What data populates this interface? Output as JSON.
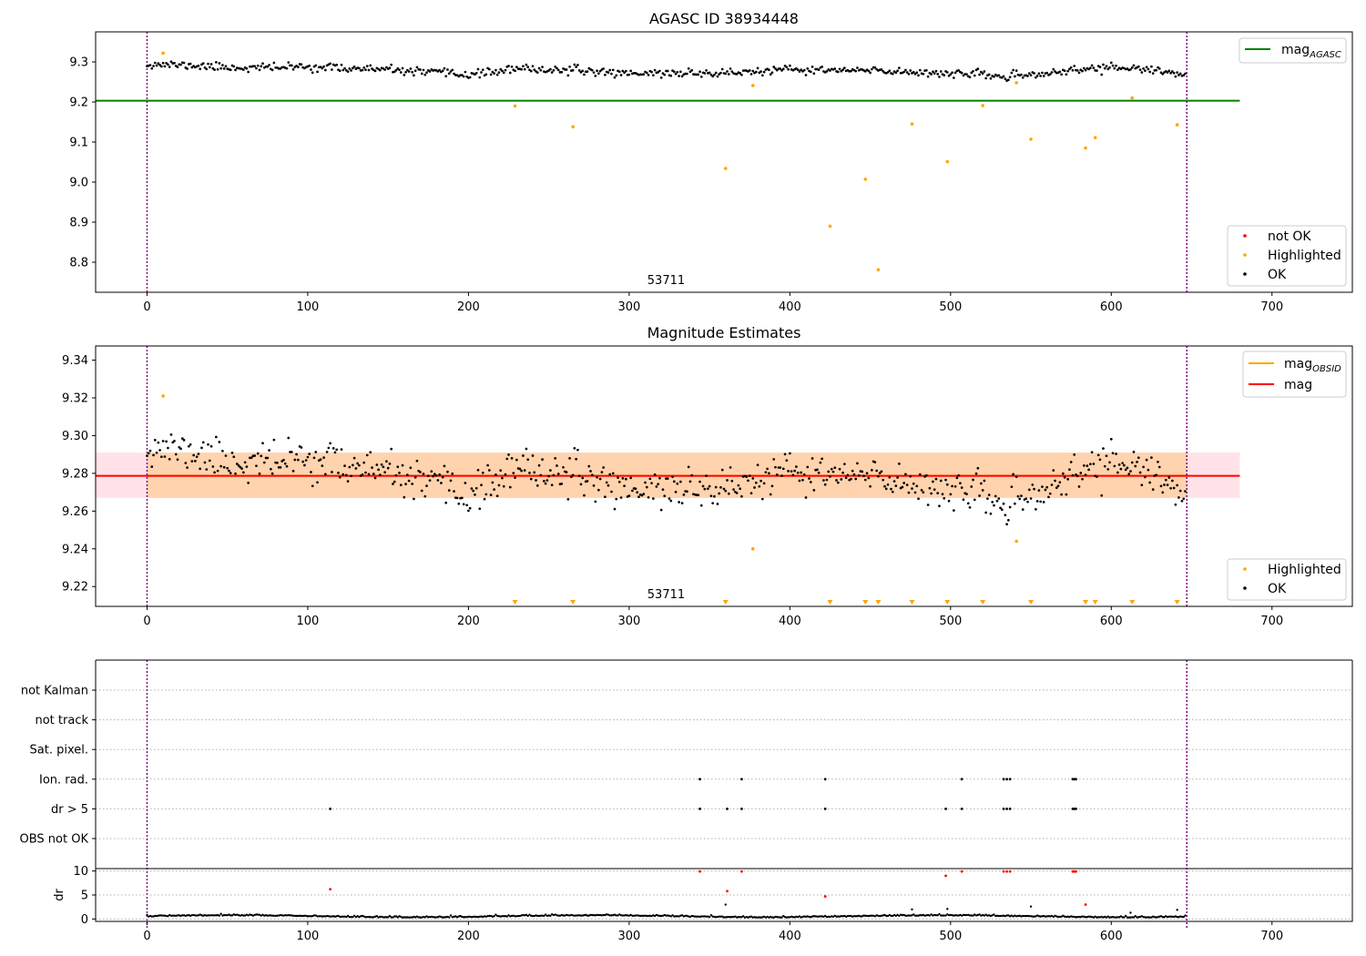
{
  "chart_data": [
    {
      "type": "scatter",
      "title": "AGASC ID 38934448",
      "xlim": [
        -32,
        750
      ],
      "ylim": [
        8.725,
        9.375
      ],
      "xticks": [
        0,
        100,
        200,
        300,
        400,
        500,
        600,
        700
      ],
      "yticks": [
        8.8,
        8.9,
        9.0,
        9.1,
        9.2,
        9.3
      ],
      "ytick_labels": [
        "8.8",
        "8.9",
        "9.0",
        "9.1",
        "9.2",
        "9.3"
      ],
      "obs_bounds": [
        0,
        647
      ],
      "obsid_label": {
        "text": "53711",
        "x": 323
      },
      "hline": {
        "name": "mag_AGASC",
        "value": 9.203,
        "x_end": 680,
        "color": "#008000"
      },
      "series_ok": {
        "name": "OK",
        "color": "#000000",
        "n": 647,
        "x_start": 0,
        "x_end": 646,
        "profile_x": [
          0,
          20,
          60,
          100,
          150,
          200,
          230,
          260,
          300,
          360,
          400,
          450,
          500,
          540,
          560,
          600,
          646
        ],
        "profile_y": [
          9.295,
          9.292,
          9.285,
          9.288,
          9.28,
          9.268,
          9.282,
          9.28,
          9.272,
          9.272,
          9.28,
          9.278,
          9.272,
          9.262,
          9.272,
          9.288,
          9.27
        ],
        "noise": 0.01
      },
      "series_highlighted": {
        "name": "Highlighted",
        "color": "#ffa500",
        "x": [
          10,
          229,
          265,
          360,
          377,
          425,
          447,
          455,
          476,
          498,
          520,
          541,
          550,
          584,
          590,
          613,
          641
        ],
        "y": [
          9.322,
          9.19,
          9.138,
          9.034,
          9.241,
          8.89,
          9.007,
          8.781,
          9.145,
          9.051,
          9.191,
          9.248,
          9.107,
          9.085,
          9.111,
          9.21,
          9.143
        ]
      },
      "series_not_ok": {
        "name": "not OK",
        "color": "#ff0000"
      },
      "legend_upper": [
        {
          "label": "mag",
          "sub": "AGASC",
          "color": "#008000"
        }
      ],
      "legend_lower": [
        {
          "label": "not OK",
          "color": "#ff0000"
        },
        {
          "label": "Highlighted",
          "color": "#ffa500"
        },
        {
          "label": "OK",
          "color": "#000000"
        }
      ]
    },
    {
      "type": "scatter",
      "title": "Magnitude Estimates",
      "xlim": [
        -32,
        750
      ],
      "ylim": [
        9.2095,
        9.3475
      ],
      "xticks": [
        0,
        100,
        200,
        300,
        400,
        500,
        600,
        700
      ],
      "yticks": [
        9.22,
        9.24,
        9.26,
        9.28,
        9.3,
        9.32,
        9.34
      ],
      "ytick_labels": [
        "9.22",
        "9.24",
        "9.26",
        "9.28",
        "9.30",
        "9.32",
        "9.34"
      ],
      "obs_bounds": [
        0,
        647
      ],
      "obsid_label": {
        "text": "53711",
        "x": 323
      },
      "mag": {
        "name": "mag",
        "value": 9.2787,
        "color": "#ff0000"
      },
      "mag_band": {
        "low": 9.267,
        "high": 9.291,
        "color": "#ffc0cb"
      },
      "mag_obsid": {
        "name": "mag_OBSID",
        "value": 9.2787,
        "low": 9.267,
        "high": 9.291,
        "color": "#ffa500"
      },
      "series_ok": {
        "name": "OK",
        "color": "#000000",
        "n": 647,
        "x_start": 0,
        "x_end": 646,
        "profile_x": [
          0,
          20,
          60,
          100,
          150,
          200,
          230,
          260,
          300,
          360,
          400,
          450,
          500,
          540,
          560,
          600,
          646
        ],
        "profile_y": [
          9.295,
          9.292,
          9.285,
          9.288,
          9.28,
          9.268,
          9.282,
          9.28,
          9.272,
          9.272,
          9.28,
          9.278,
          9.272,
          9.262,
          9.272,
          9.288,
          9.27
        ],
        "noise": 0.01
      },
      "series_highlighted": {
        "name": "Highlighted",
        "color": "#ffa500",
        "x": [
          10,
          377,
          541
        ],
        "y": [
          9.321,
          9.24,
          9.244
        ]
      },
      "bottom_markers": {
        "color": "#ffa500",
        "x": [
          229,
          265,
          360,
          425,
          447,
          455,
          476,
          498,
          520,
          550,
          584,
          590,
          613,
          641
        ]
      },
      "legend_upper": [
        {
          "label": "mag",
          "sub": "OBSID",
          "color": "#ffa500"
        },
        {
          "label": "mag",
          "sub": "",
          "color": "#ff0000"
        }
      ],
      "legend_lower": [
        {
          "label": "Highlighted",
          "color": "#ffa500"
        },
        {
          "label": "OK",
          "color": "#000000"
        }
      ]
    },
    {
      "type": "scatter",
      "xlim": [
        -32,
        750
      ],
      "obs_bounds": [
        0,
        647
      ],
      "flag_rows": [
        "OBS not OK",
        "dr > 5",
        "Ion. rad.",
        "Sat. pixel.",
        "not track",
        "not Kalman"
      ],
      "flag_points": {
        "dr > 5": [
          114,
          344,
          361,
          370,
          422,
          497,
          507,
          533,
          535,
          537,
          576,
          577,
          578
        ],
        "Ion. rad.": [
          344,
          370,
          422,
          507,
          533,
          535,
          537,
          576,
          577,
          578
        ]
      }
    },
    {
      "type": "scatter",
      "xlim": [
        -32,
        750
      ],
      "ylim": [
        -0.5,
        10.5
      ],
      "ylabel": "dr",
      "xticks": [
        0,
        100,
        200,
        300,
        400,
        500,
        600,
        700
      ],
      "yticks": [
        0,
        5,
        10
      ],
      "obs_bounds": [
        0,
        647
      ],
      "series_ok": {
        "name": "OK",
        "color": "#000000",
        "n": 647,
        "x_start": 0,
        "x_end": 646,
        "base": 0.5,
        "noise": 0.25
      },
      "series_dr_outliers": {
        "color": "#000000",
        "x": [
          360,
          476,
          498,
          550,
          612,
          641
        ],
        "y": [
          3.0,
          2.0,
          2.1,
          2.6,
          1.3,
          1.9
        ]
      },
      "series_not_ok": {
        "name": "not OK",
        "color": "#ff0000",
        "x": [
          114,
          344,
          361,
          370,
          422,
          497,
          507,
          533,
          535,
          537,
          576,
          577,
          578,
          584
        ],
        "y": [
          6.2,
          9.9,
          5.8,
          9.9,
          4.7,
          9.0,
          9.9,
          9.9,
          9.9,
          9.9,
          9.9,
          9.9,
          9.9,
          3.0
        ]
      }
    }
  ]
}
